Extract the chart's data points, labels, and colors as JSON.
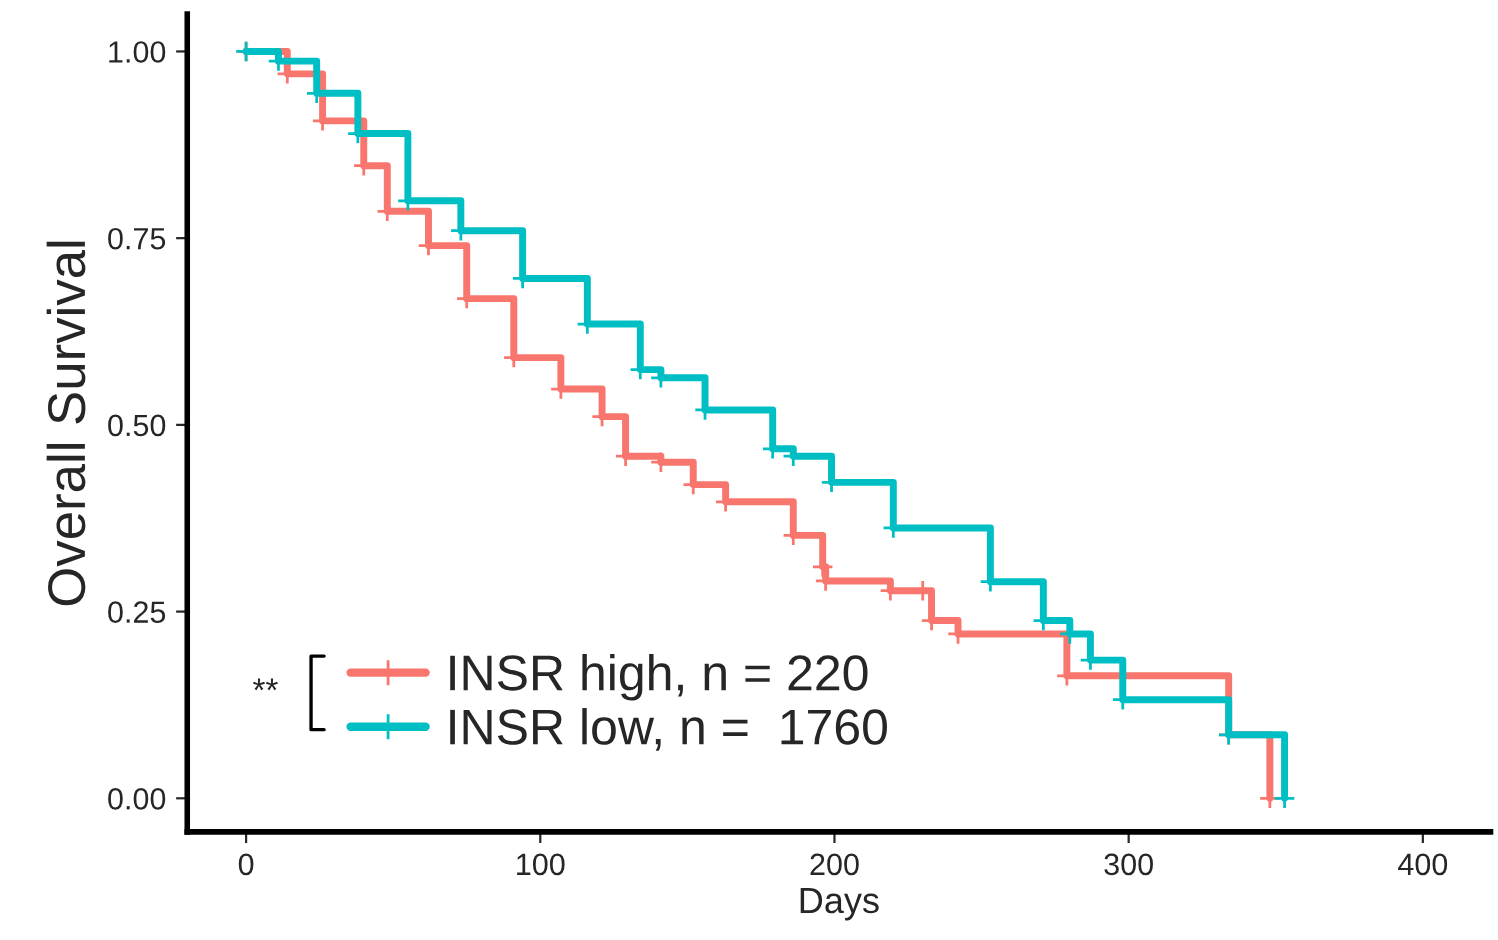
{
  "chart_data": {
    "type": "step",
    "xlabel": "Days",
    "ylabel": "Overall Survival",
    "xlim": [
      -20,
      423
    ],
    "ylim": [
      -0.045,
      1.05
    ],
    "xticks": [
      0,
      100,
      200,
      300,
      400
    ],
    "yticks": [
      {
        "value": 0,
        "label": "0.00"
      },
      {
        "value": 0.25,
        "label": "0.25"
      },
      {
        "value": 0.5,
        "label": "0.50"
      },
      {
        "value": 0.75,
        "label": "0.75"
      },
      {
        "value": 1,
        "label": "1.00"
      }
    ],
    "grid": false,
    "legend": "bottom left",
    "marker": "cross",
    "line_style": "solid",
    "annotations": [
      "**"
    ],
    "series": [
      {
        "name": "INSR high, n = 220",
        "color": "#f8766d",
        "x": [
          0,
          14,
          26,
          40,
          48,
          62,
          75,
          91,
          107,
          121,
          129,
          141,
          152,
          163,
          186,
          196,
          197,
          219,
          230,
          233,
          242,
          279,
          334,
          348
        ],
        "values": [
          1.0,
          0.97,
          0.907,
          0.847,
          0.786,
          0.74,
          0.669,
          0.59,
          0.548,
          0.511,
          0.458,
          0.45,
          0.42,
          0.397,
          0.352,
          0.31,
          0.291,
          0.278,
          0.278,
          0.238,
          0.22,
          0.164,
          0.085,
          0
        ]
      },
      {
        "name": "INSR low, n =  1760",
        "color": "#00bfc4",
        "x": [
          0,
          11,
          24,
          38,
          55,
          73,
          94,
          116,
          134,
          141,
          156,
          179,
          186,
          199,
          220,
          253,
          271,
          280,
          287,
          298,
          334,
          353
        ],
        "values": [
          1.0,
          0.987,
          0.944,
          0.89,
          0.8,
          0.76,
          0.696,
          0.635,
          0.574,
          0.563,
          0.52,
          0.468,
          0.458,
          0.423,
          0.362,
          0.29,
          0.238,
          0.22,
          0.185,
          0.132,
          0.085,
          0
        ]
      }
    ]
  }
}
